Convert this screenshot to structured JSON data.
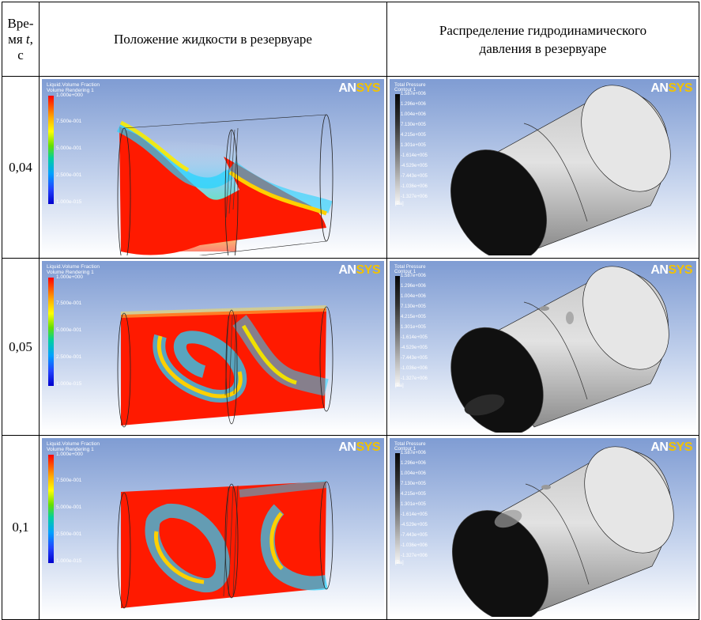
{
  "header": {
    "time_col": [
      "Вре-",
      "мя",
      "t",
      ",",
      "с"
    ],
    "col_liquid": "Положение жидкости в резервуаре",
    "col_pressure": [
      "Распределение гидродинамического",
      "давления в резервуаре"
    ]
  },
  "rows": [
    {
      "time": "0,04"
    },
    {
      "time": "0,05"
    },
    {
      "time": "0,1"
    }
  ],
  "liquid_legend": {
    "title": [
      "Liquid.Volume Fraction",
      "Volume Rendering 1"
    ],
    "labels": [
      "1.000e+000",
      "7.500e-001",
      "5.000e-001",
      "2.500e-001",
      "1.000e-015"
    ]
  },
  "pressure_legend": {
    "title": [
      "Total Pressure",
      "Contour 1"
    ],
    "labels": [
      "1.587e+006",
      "1.296e+006",
      "1.004e+006",
      "7.130e+005",
      "4.215e+005",
      "1.301e+005",
      "-1.614e+005",
      "-4.529e+005",
      "-7.443e+005",
      "-1.036e+006",
      "-1.327e+006"
    ],
    "unit": "[Pa]"
  },
  "logo": {
    "part1": "AN",
    "part2": "SYS"
  },
  "colors": {
    "background_top": "#7f9cd3",
    "liquid_full": "#ff0000",
    "liquid_empty": "#0000cc",
    "pressure_max": "#060606",
    "pressure_min": "#f6f6f6"
  }
}
